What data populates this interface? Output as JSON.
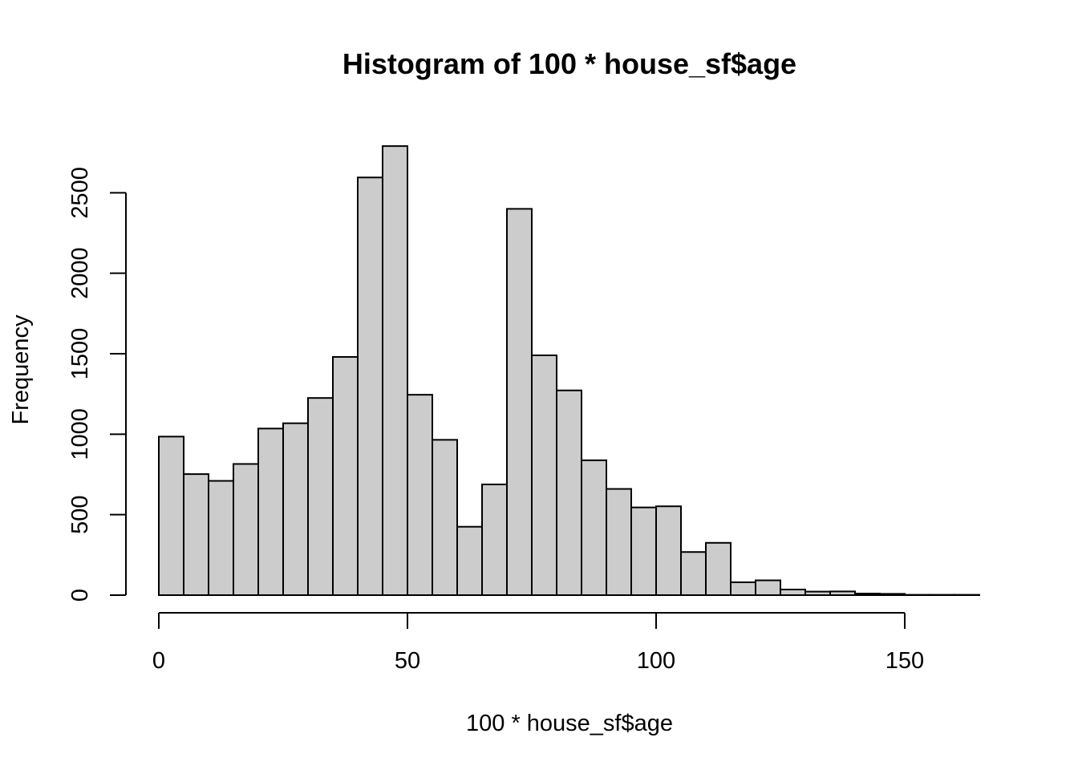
{
  "chart_data": {
    "type": "bar",
    "title": "Histogram of 100 * house_sf$age",
    "xlabel": "100 * house_sf$age",
    "ylabel": "Frequency",
    "bar_color": "#cccccc",
    "border_color": "#000000",
    "bin_width": 5,
    "xlim": [
      0,
      165
    ],
    "ylim": [
      0,
      2800
    ],
    "x_ticks": [
      0,
      50,
      100,
      150
    ],
    "y_ticks": [
      0,
      500,
      1000,
      1500,
      2000,
      2500
    ],
    "bins": [
      {
        "start": 0,
        "end": 5,
        "count": 985
      },
      {
        "start": 5,
        "end": 10,
        "count": 752
      },
      {
        "start": 10,
        "end": 15,
        "count": 710
      },
      {
        "start": 15,
        "end": 20,
        "count": 815
      },
      {
        "start": 20,
        "end": 25,
        "count": 1035
      },
      {
        "start": 25,
        "end": 30,
        "count": 1068
      },
      {
        "start": 30,
        "end": 35,
        "count": 1225
      },
      {
        "start": 35,
        "end": 40,
        "count": 1480
      },
      {
        "start": 40,
        "end": 45,
        "count": 2595
      },
      {
        "start": 45,
        "end": 50,
        "count": 2790
      },
      {
        "start": 50,
        "end": 55,
        "count": 1245
      },
      {
        "start": 55,
        "end": 60,
        "count": 965
      },
      {
        "start": 60,
        "end": 65,
        "count": 425
      },
      {
        "start": 65,
        "end": 70,
        "count": 688
      },
      {
        "start": 70,
        "end": 75,
        "count": 2400
      },
      {
        "start": 75,
        "end": 80,
        "count": 1490
      },
      {
        "start": 80,
        "end": 85,
        "count": 1272
      },
      {
        "start": 85,
        "end": 90,
        "count": 838
      },
      {
        "start": 90,
        "end": 95,
        "count": 660
      },
      {
        "start": 95,
        "end": 100,
        "count": 545
      },
      {
        "start": 100,
        "end": 105,
        "count": 552
      },
      {
        "start": 105,
        "end": 110,
        "count": 268
      },
      {
        "start": 110,
        "end": 115,
        "count": 325
      },
      {
        "start": 115,
        "end": 120,
        "count": 80
      },
      {
        "start": 120,
        "end": 125,
        "count": 92
      },
      {
        "start": 125,
        "end": 130,
        "count": 35
      },
      {
        "start": 130,
        "end": 135,
        "count": 22
      },
      {
        "start": 135,
        "end": 140,
        "count": 23
      },
      {
        "start": 140,
        "end": 145,
        "count": 10
      },
      {
        "start": 145,
        "end": 150,
        "count": 8
      },
      {
        "start": 150,
        "end": 155,
        "count": 2
      },
      {
        "start": 155,
        "end": 160,
        "count": 2
      },
      {
        "start": 160,
        "end": 165,
        "count": 2
      }
    ]
  }
}
